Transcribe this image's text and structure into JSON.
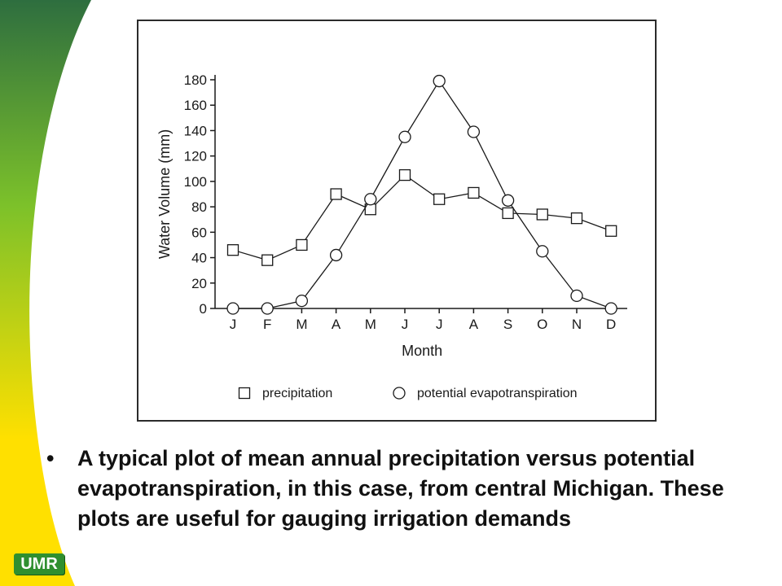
{
  "logo_text": "UMR",
  "colors": {
    "band_top": "#2e6e3f",
    "band_mid": "#7cc12a",
    "band_bottom": "#ffe000",
    "ink": "#1a1a1a",
    "logo_bg": "#2f8f2f"
  },
  "caption": {
    "bullet": "•",
    "text": "A typical plot of mean annual precipitation versus potential evapotranspiration, in this case, from central Michigan.  These plots are useful for gauging irrigation demands"
  },
  "chart_data": {
    "type": "line",
    "categories": [
      "J",
      "F",
      "M",
      "A",
      "M",
      "J",
      "J",
      "A",
      "S",
      "O",
      "N",
      "D"
    ],
    "xlabel": "Month",
    "ylabel": "Water Volume (mm)",
    "ylim": [
      0,
      180
    ],
    "yticks": [
      0,
      20,
      40,
      60,
      80,
      100,
      120,
      140,
      160,
      180
    ],
    "grid": false,
    "legend_position": "bottom",
    "series": [
      {
        "name": "precipitation",
        "marker": "square",
        "values": [
          46,
          38,
          50,
          90,
          78,
          105,
          86,
          91,
          75,
          74,
          71,
          61
        ]
      },
      {
        "name": "potential evapotranspiration",
        "marker": "circle",
        "values": [
          0,
          0,
          6,
          42,
          86,
          135,
          179,
          139,
          85,
          45,
          10,
          0
        ]
      }
    ]
  }
}
